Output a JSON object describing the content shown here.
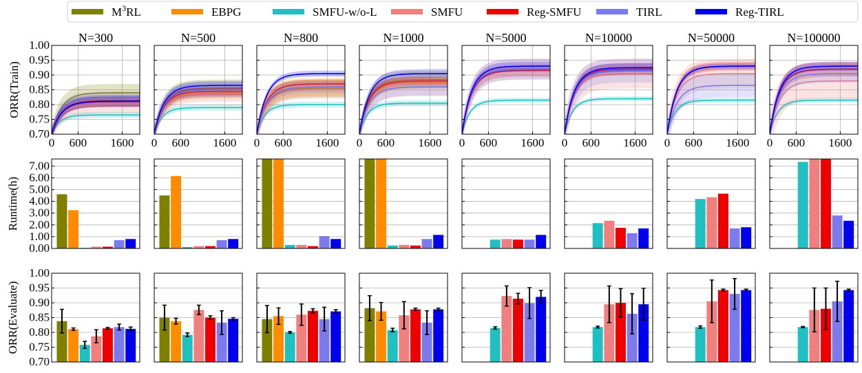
{
  "colors": {
    "M3RL": "#808000",
    "EBPG": "#ff8c00",
    "SMFU-w/o-L": "#20c0c0",
    "SMFU": "#f08080",
    "Reg-SMFU": "#ee0000",
    "TIRL": "#7b7bee",
    "Reg-TIRL": "#0000ee"
  },
  "legend": [
    {
      "key": "M3RL",
      "label_base": "M",
      "label_sup": "3",
      "label_rest": "RL"
    },
    {
      "key": "EBPG",
      "label_base": "EBPG",
      "label_sup": "",
      "label_rest": ""
    },
    {
      "key": "SMFU-w/o-L",
      "label_base": "SMFU-w/o-L",
      "label_sup": "",
      "label_rest": ""
    },
    {
      "key": "SMFU",
      "label_base": "SMFU",
      "label_sup": "",
      "label_rest": ""
    },
    {
      "key": "Reg-SMFU",
      "label_base": "Reg-SMFU",
      "label_sup": "",
      "label_rest": ""
    },
    {
      "key": "TIRL",
      "label_base": "TIRL",
      "label_sup": "",
      "label_rest": ""
    },
    {
      "key": "Reg-TIRL",
      "label_base": "Reg-TIRL",
      "label_sup": "",
      "label_rest": ""
    }
  ],
  "column_titles": [
    "N=300",
    "N=500",
    "N=800",
    "N=1000",
    "N=5000",
    "N=10000",
    "N=50000",
    "N=100000"
  ],
  "row_labels": {
    "train": "ORR(Train)",
    "runtime": "Runtime(h)",
    "evaluate": "ORR(Evaluate)"
  },
  "chart_data": [
    {
      "id": "train",
      "type": "line",
      "ylabel": "ORR(Train)",
      "xlim": [
        0,
        2000
      ],
      "ylim": [
        0.7,
        1.0
      ],
      "xticks": [
        0,
        600,
        1600
      ],
      "xtick_labels": [
        "0",
        "600",
        "1600"
      ],
      "yticks": [
        0.7,
        0.75,
        0.8,
        0.85,
        0.9,
        0.95,
        1.0
      ],
      "ytick_labels": [
        "0.70",
        "0.75",
        "0.80",
        "0.85",
        "0.90",
        "0.95",
        "1.00"
      ],
      "grid": true,
      "note_shading": "translucent band around each series",
      "panels": [
        {
          "title": "N=300",
          "series": [
            {
              "key": "M3RL",
              "final": 0.84,
              "band": 0.03
            },
            {
              "key": "EBPG",
              "final": 0.815,
              "band": 0.02
            },
            {
              "key": "SMFU-w/o-L",
              "final": 0.765,
              "band": 0.01
            },
            {
              "key": "SMFU",
              "final": 0.795,
              "band": 0.025
            },
            {
              "key": "Reg-SMFU",
              "final": 0.81,
              "band": 0.015
            },
            {
              "key": "TIRL",
              "final": 0.825,
              "band": 0.02
            },
            {
              "key": "Reg-TIRL",
              "final": 0.812,
              "band": 0.02
            }
          ]
        },
        {
          "title": "N=500",
          "series": [
            {
              "key": "M3RL",
              "final": 0.855,
              "band": 0.03
            },
            {
              "key": "EBPG",
              "final": 0.84,
              "band": 0.02
            },
            {
              "key": "SMFU-w/o-L",
              "final": 0.79,
              "band": 0.01
            },
            {
              "key": "SMFU",
              "final": 0.835,
              "band": 0.025
            },
            {
              "key": "Reg-SMFU",
              "final": 0.845,
              "band": 0.015
            },
            {
              "key": "TIRL",
              "final": 0.85,
              "band": 0.025
            },
            {
              "key": "Reg-TIRL",
              "final": 0.865,
              "band": 0.015
            }
          ]
        },
        {
          "title": "N=800",
          "series": [
            {
              "key": "M3RL",
              "final": 0.855,
              "band": 0.03
            },
            {
              "key": "EBPG",
              "final": 0.86,
              "band": 0.03
            },
            {
              "key": "SMFU-w/o-L",
              "final": 0.8,
              "band": 0.01
            },
            {
              "key": "SMFU",
              "final": 0.85,
              "band": 0.03
            },
            {
              "key": "Reg-SMFU",
              "final": 0.87,
              "band": 0.015
            },
            {
              "key": "TIRL",
              "final": 0.86,
              "band": 0.02
            },
            {
              "key": "Reg-TIRL",
              "final": 0.905,
              "band": 0.01
            }
          ]
        },
        {
          "title": "N=1000",
          "series": [
            {
              "key": "M3RL",
              "final": 0.885,
              "band": 0.03
            },
            {
              "key": "EBPG",
              "final": 0.875,
              "band": 0.02
            },
            {
              "key": "SMFU-w/o-L",
              "final": 0.805,
              "band": 0.01
            },
            {
              "key": "SMFU",
              "final": 0.86,
              "band": 0.03
            },
            {
              "key": "Reg-SMFU",
              "final": 0.88,
              "band": 0.015
            },
            {
              "key": "TIRL",
              "final": 0.86,
              "band": 0.03
            },
            {
              "key": "Reg-TIRL",
              "final": 0.905,
              "band": 0.015
            }
          ]
        },
        {
          "title": "N=5000",
          "series": [
            {
              "key": "SMFU-w/o-L",
              "final": 0.815,
              "band": 0.008
            },
            {
              "key": "SMFU",
              "final": 0.92,
              "band": 0.035
            },
            {
              "key": "Reg-SMFU",
              "final": 0.915,
              "band": 0.02
            },
            {
              "key": "TIRL",
              "final": 0.92,
              "band": 0.035
            },
            {
              "key": "Reg-TIRL",
              "final": 0.93,
              "band": 0.015
            }
          ]
        },
        {
          "title": "N=10000",
          "series": [
            {
              "key": "SMFU-w/o-L",
              "final": 0.82,
              "band": 0.008
            },
            {
              "key": "SMFU",
              "final": 0.905,
              "band": 0.05
            },
            {
              "key": "Reg-SMFU",
              "final": 0.92,
              "band": 0.02
            },
            {
              "key": "TIRL",
              "final": 0.915,
              "band": 0.04
            },
            {
              "key": "Reg-TIRL",
              "final": 0.925,
              "band": 0.015
            }
          ]
        },
        {
          "title": "N=50000",
          "series": [
            {
              "key": "SMFU-w/o-L",
              "final": 0.815,
              "band": 0.008
            },
            {
              "key": "SMFU",
              "final": 0.905,
              "band": 0.05
            },
            {
              "key": "Reg-SMFU",
              "final": 0.93,
              "band": 0.015
            },
            {
              "key": "TIRL",
              "final": 0.865,
              "band": 0.04
            },
            {
              "key": "Reg-TIRL",
              "final": 0.93,
              "band": 0.01
            }
          ]
        },
        {
          "title": "N=100000",
          "series": [
            {
              "key": "SMFU-w/o-L",
              "final": 0.815,
              "band": 0.008
            },
            {
              "key": "SMFU",
              "final": 0.88,
              "band": 0.06
            },
            {
              "key": "Reg-SMFU",
              "final": 0.92,
              "band": 0.025
            },
            {
              "key": "TIRL",
              "final": 0.905,
              "band": 0.03
            },
            {
              "key": "Reg-TIRL",
              "final": 0.93,
              "band": 0.015
            }
          ]
        }
      ]
    },
    {
      "id": "runtime",
      "type": "bar",
      "ylabel": "Runtime(h)",
      "ylim": [
        0,
        7.6
      ],
      "yticks": [
        0,
        1,
        2,
        3,
        4,
        5,
        6,
        7
      ],
      "ytick_labels": [
        "0.00",
        "1.00",
        "2.00",
        "3.00",
        "4.00",
        "5.00",
        "6.00",
        "7.00"
      ],
      "grid": true,
      "series_order": [
        "M3RL",
        "EBPG",
        "SMFU-w/o-L",
        "SMFU",
        "Reg-SMFU",
        "TIRL",
        "Reg-TIRL"
      ],
      "panels": [
        {
          "title": "N=300",
          "values": [
            4.6,
            3.25,
            0.05,
            0.15,
            0.15,
            0.7,
            0.8
          ]
        },
        {
          "title": "N=500",
          "values": [
            4.5,
            6.15,
            0.12,
            0.2,
            0.2,
            0.7,
            0.8
          ]
        },
        {
          "title": "N=800",
          "values": [
            7.6,
            7.6,
            0.3,
            0.3,
            0.2,
            1.05,
            0.8
          ]
        },
        {
          "title": "N=1000",
          "values": [
            7.6,
            7.6,
            0.25,
            0.3,
            0.25,
            0.8,
            1.15
          ]
        },
        {
          "title": "N=5000",
          "values": [
            null,
            null,
            0.75,
            0.8,
            0.75,
            0.75,
            1.15
          ]
        },
        {
          "title": "N=10000",
          "values": [
            null,
            null,
            2.15,
            2.35,
            1.75,
            1.3,
            1.7
          ]
        },
        {
          "title": "N=50000",
          "values": [
            null,
            null,
            4.2,
            4.35,
            4.65,
            1.7,
            1.8
          ]
        },
        {
          "title": "N=100000",
          "values": [
            null,
            null,
            7.35,
            7.6,
            7.6,
            2.8,
            2.35
          ]
        }
      ]
    },
    {
      "id": "evaluate",
      "type": "bar",
      "ylabel": "ORR(Evaluate)",
      "ylim": [
        0.7,
        1.0
      ],
      "yticks": [
        0.7,
        0.75,
        0.8,
        0.85,
        0.9,
        0.95,
        1.0
      ],
      "ytick_labels": [
        "0.70",
        "0.75",
        "0.80",
        "0.85",
        "0.90",
        "0.95",
        "1.00"
      ],
      "grid": true,
      "error_bars": true,
      "series_order": [
        "M3RL",
        "EBPG",
        "SMFU-w/o-L",
        "SMFU",
        "Reg-SMFU",
        "TIRL",
        "Reg-TIRL"
      ],
      "panels": [
        {
          "title": "N=300",
          "values": [
            0.838,
            0.811,
            0.758,
            0.787,
            0.814,
            0.818,
            0.812
          ],
          "errors": [
            0.04,
            0.004,
            0.012,
            0.022,
            0.003,
            0.01,
            0.006
          ]
        },
        {
          "title": "N=500",
          "values": [
            0.85,
            0.838,
            0.792,
            0.876,
            0.85,
            0.833,
            0.846
          ],
          "errors": [
            0.042,
            0.01,
            0.006,
            0.016,
            0.006,
            0.04,
            0.004
          ]
        },
        {
          "title": "N=800",
          "values": [
            0.845,
            0.855,
            0.8,
            0.86,
            0.873,
            0.845,
            0.871
          ],
          "errors": [
            0.046,
            0.028,
            0.003,
            0.036,
            0.007,
            0.04,
            0.006
          ]
        },
        {
          "title": "N=1000",
          "values": [
            0.882,
            0.871,
            0.808,
            0.858,
            0.878,
            0.833,
            0.878
          ],
          "errors": [
            0.042,
            0.03,
            0.006,
            0.046,
            0.004,
            0.04,
            0.004
          ]
        },
        {
          "title": "N=5000",
          "values": [
            null,
            null,
            0.815,
            0.923,
            0.914,
            0.899,
            0.92
          ],
          "errors": [
            0,
            0,
            0.004,
            0.034,
            0.018,
            0.052,
            0.022
          ]
        },
        {
          "title": "N=10000",
          "values": [
            null,
            null,
            0.818,
            0.895,
            0.9,
            0.863,
            0.895
          ],
          "errors": [
            0,
            0,
            0.003,
            0.062,
            0.048,
            0.068,
            0.054
          ]
        },
        {
          "title": "N=50000",
          "values": [
            null,
            null,
            0.818,
            0.905,
            0.943,
            0.93,
            0.943
          ],
          "errors": [
            0,
            0,
            0.004,
            0.072,
            0.003,
            0.052,
            0.003
          ]
        },
        {
          "title": "N=100000",
          "values": [
            null,
            null,
            0.818,
            0.876,
            0.88,
            0.905,
            0.943
          ],
          "errors": [
            0,
            0,
            0.002,
            0.074,
            0.07,
            0.068,
            0.003
          ]
        }
      ]
    }
  ]
}
